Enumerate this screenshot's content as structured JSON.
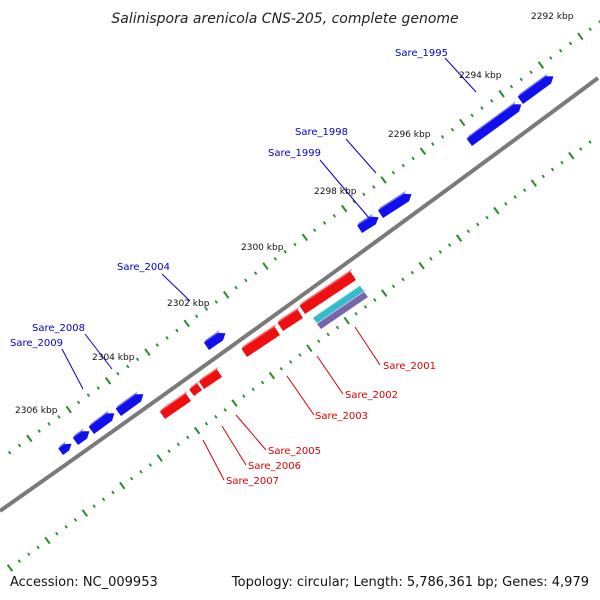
{
  "title": "Salinispora arenicola CNS-205, complete genome",
  "accession": "Accession: NC_009953",
  "summary": "Topology: circular; Length: 5,786,361 bp; Genes: 4,979",
  "colors": {
    "backbone": "#7a7a7a",
    "forward_gene": "#1010ee",
    "reverse_gene": "#ee1010",
    "tick": "#2a8a2a",
    "feature_cyan": "#33bbcc",
    "feature_purple": "#7766aa",
    "forward_label": "#0000cc",
    "reverse_label": "#dd0000"
  },
  "scale_labels": [
    "2292 kbp",
    "2294 kbp",
    "2296 kbp",
    "2298 kbp",
    "2300 kbp",
    "2302 kbp",
    "2304 kbp",
    "2306 kbp"
  ],
  "forward_genes": [
    "Sare_1995",
    "Sare_1998",
    "Sare_1999",
    "Sare_2004",
    "Sare_2008",
    "Sare_2009"
  ],
  "reverse_genes": [
    "Sare_2001",
    "Sare_2002",
    "Sare_2003",
    "Sare_2005",
    "Sare_2006",
    "Sare_2007"
  ]
}
